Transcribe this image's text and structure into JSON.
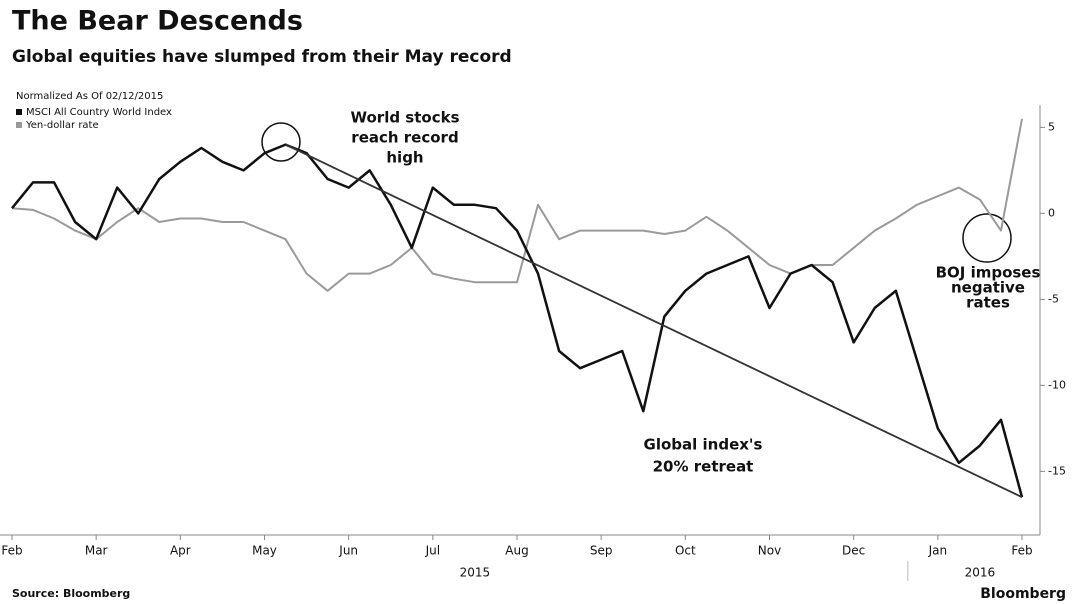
{
  "chart_data": {
    "type": "line",
    "title": "The Bear Descends",
    "subtitle": "Global equities have slumped from their May record",
    "note": "Normalized As Of 02/12/2015",
    "categories": [
      "Feb",
      null,
      null,
      null,
      "Mar",
      null,
      null,
      null,
      "Apr",
      null,
      null,
      null,
      "May",
      null,
      null,
      null,
      "Jun",
      null,
      null,
      null,
      "Jul",
      null,
      null,
      null,
      "Aug",
      null,
      null,
      null,
      "Sep",
      null,
      null,
      null,
      "Oct",
      null,
      null,
      null,
      "Nov",
      null,
      null,
      null,
      "Dec",
      null,
      null,
      null,
      "Jan",
      null,
      null,
      null,
      "Feb"
    ],
    "years": [
      "2015",
      "2016"
    ],
    "series": [
      {
        "name": "MSCI All Country World Index",
        "color": "#111111",
        "values": [
          0.3,
          1.8,
          1.8,
          -0.5,
          -1.5,
          1.5,
          0.0,
          2.0,
          3.0,
          3.8,
          3.0,
          2.5,
          3.5,
          4.0,
          3.5,
          2.0,
          1.5,
          2.5,
          0.5,
          -2.0,
          1.5,
          0.5,
          0.5,
          0.3,
          -1.0,
          -3.5,
          -8.0,
          -9.0,
          -8.5,
          -8.0,
          -11.5,
          -6.0,
          -4.5,
          -3.5,
          -3.0,
          -2.5,
          -5.5,
          -3.5,
          -3.0,
          -4.0,
          -7.5,
          -5.5,
          -4.5,
          -8.5,
          -12.5,
          -14.5,
          -13.5,
          -12.0,
          -16.5
        ]
      },
      {
        "name": "Yen-dollar rate",
        "color": "#9a9a9a",
        "values": [
          0.3,
          0.2,
          -0.3,
          -1.0,
          -1.5,
          -0.5,
          0.3,
          -0.5,
          -0.3,
          -0.3,
          -0.5,
          -0.5,
          -1.0,
          -1.5,
          -3.5,
          -4.5,
          -3.5,
          -3.5,
          -3.0,
          -2.0,
          -3.5,
          -3.8,
          -4.0,
          -4.0,
          -4.0,
          0.5,
          -1.5,
          -1.0,
          -1.0,
          -1.0,
          -1.0,
          -1.2,
          -1.0,
          -0.2,
          -1.0,
          -2.0,
          -3.0,
          -3.5,
          -3.0,
          -3.0,
          -2.0,
          -1.0,
          -0.3,
          0.5,
          1.0,
          1.5,
          0.8,
          -1.0,
          5.5
        ]
      }
    ],
    "ylim": [
      -18.7,
      6.3
    ],
    "yticks": [
      5,
      0,
      -5,
      -10,
      -15
    ],
    "annotations": [
      {
        "lines": [
          "World stocks",
          "reach record",
          "high"
        ]
      },
      {
        "lines": [
          "Global index's",
          "20% retreat"
        ]
      },
      {
        "lines": [
          "BOJ imposes",
          "negative",
          "rates"
        ]
      }
    ],
    "source": "Source: Bloomberg",
    "brand": "Bloomberg"
  }
}
